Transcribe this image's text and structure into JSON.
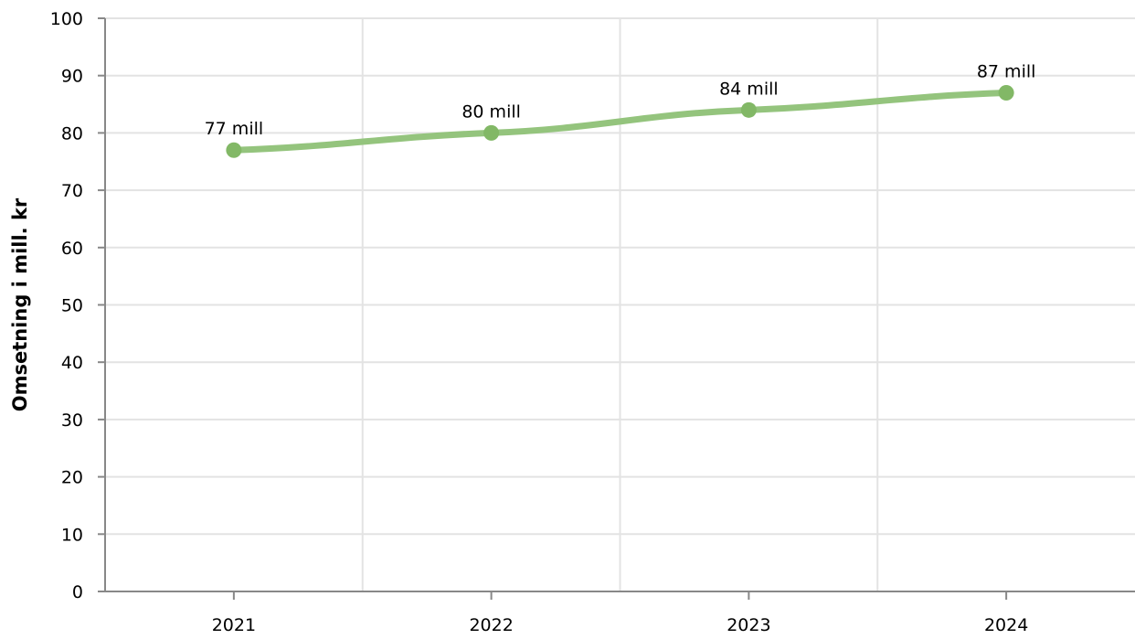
{
  "chart_data": {
    "type": "line",
    "categories": [
      "2021",
      "2022",
      "2023",
      "2024"
    ],
    "series": [
      {
        "values": [
          77,
          80,
          84,
          87
        ],
        "data_labels": [
          "77 mill",
          "80 mill",
          "84 mill",
          "87 mill"
        ]
      }
    ],
    "ylabel": "Omsetning i mill. kr",
    "xlabel": "",
    "ylim": [
      0,
      100
    ],
    "yticks": [
      0,
      10,
      20,
      30,
      40,
      50,
      60,
      70,
      80,
      90,
      100
    ],
    "grid": true,
    "smooth": true,
    "colors": {
      "line": "#94c47d",
      "marker": "#82b866",
      "grid": "#e3e3e3",
      "axis": "#888888"
    }
  }
}
